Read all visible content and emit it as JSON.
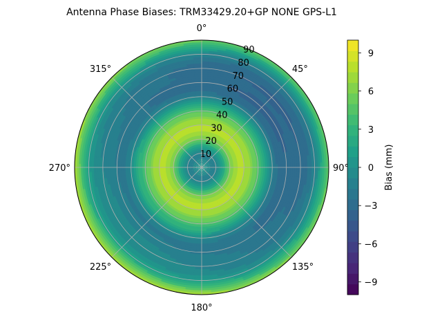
{
  "chart_data": {
    "type": "heatmap",
    "subtype": "polar-contour",
    "title": "Antenna Phase Biases: TRM33429.20+GP  NONE GPS-L1",
    "angle_direction": "clockwise",
    "zero_angle_at": "top",
    "angular_ticks": [
      "0°",
      "45°",
      "90°",
      "135°",
      "180°",
      "225°",
      "270°",
      "315°"
    ],
    "angular_tick_values": [
      0,
      45,
      90,
      135,
      180,
      225,
      270,
      315
    ],
    "radial_ticks": [
      "10",
      "20",
      "30",
      "40",
      "50",
      "60",
      "70",
      "80",
      "90"
    ],
    "radial_tick_values": [
      10,
      20,
      30,
      40,
      50,
      60,
      70,
      80,
      90
    ],
    "radial_range": [
      0,
      90
    ],
    "grid": true,
    "colormap": "viridis",
    "color_range": [
      -10,
      10
    ],
    "colorbar": {
      "label": "Bias (mm)",
      "ticks": [
        "9",
        "6",
        "3",
        "0",
        "−3",
        "−6",
        "−9"
      ],
      "tick_values": [
        9,
        6,
        3,
        0,
        -3,
        -6,
        -9
      ],
      "levels": 24
    },
    "radial_profile": {
      "r": [
        0,
        5,
        10,
        15,
        20,
        25,
        30,
        35,
        40,
        45,
        50,
        55,
        60,
        65,
        70,
        75,
        80,
        85,
        90
      ],
      "bias_mm": [
        0.5,
        -0.5,
        -1.5,
        1.5,
        6.0,
        7.5,
        7.5,
        6.5,
        4.5,
        2.0,
        -1.0,
        -2.5,
        -2.5,
        -2.0,
        -2.0,
        -1.5,
        0.0,
        3.0,
        6.5
      ]
    },
    "azimuthal_variation": {
      "peak_negative_azimuth_deg": 50,
      "amplitude_mm": 1.5
    }
  },
  "colors": {
    "axes": "#000000",
    "grid": "#b0b0b0"
  }
}
